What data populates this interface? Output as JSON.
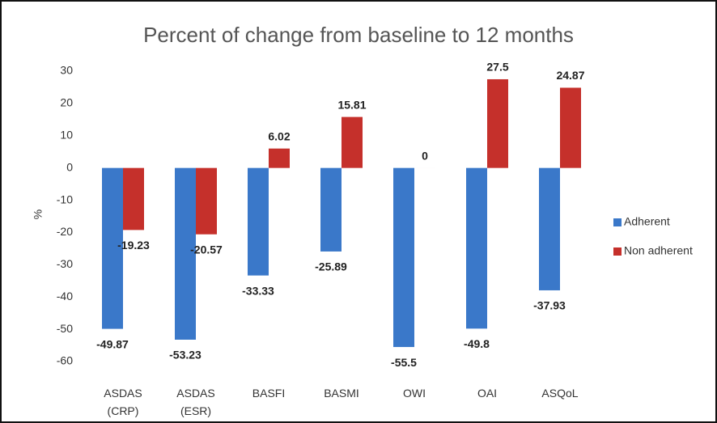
{
  "chart_data": {
    "type": "bar",
    "title": "Percent of change from baseline to 12 months",
    "y_label": "%",
    "categories": [
      "ASDAS (CRP)",
      "ASDAS (ESR)",
      "BASFI",
      "BASMI",
      "OWI",
      "OAI",
      "ASQoL"
    ],
    "series": [
      {
        "name": "Adherent",
        "color": "#3a78c9",
        "values": [
          -49.87,
          -53.23,
          -33.33,
          -25.89,
          -55.5,
          -49.8,
          -37.93
        ]
      },
      {
        "name": "Non adherent",
        "color": "#c5302b",
        "values": [
          -19.23,
          -20.57,
          6.02,
          15.81,
          0,
          27.5,
          24.87
        ]
      }
    ],
    "ylim": [
      -60,
      30
    ],
    "yticks": [
      -60,
      -50,
      -40,
      -30,
      -20,
      -10,
      0,
      10,
      20,
      30
    ],
    "grid": false,
    "legend": "right"
  }
}
